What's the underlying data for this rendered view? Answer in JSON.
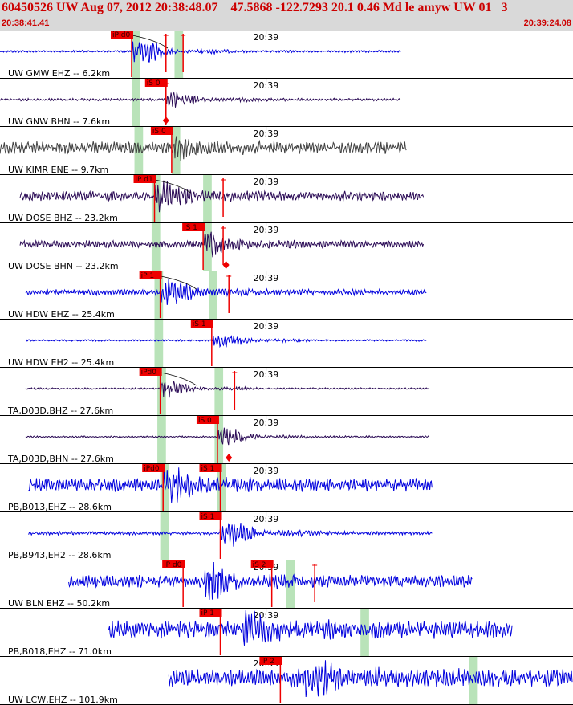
{
  "header": {
    "title": "60450526 UW Aug 07, 2012 20:38:48.07    47.5868 -122.7293 20.1 0.46 Md le amyw UW 01   3",
    "start_time": "20:38:41.41",
    "end_time": "20:39:24.08"
  },
  "colors": {
    "blue": "#0000dd",
    "dark_purple": "#2a0a55",
    "gray": "#404040",
    "pick": "#ee0000",
    "shade": "#a8dca8",
    "header_bg": "#d9d9d9"
  },
  "chart_data": {
    "type": "seismogram",
    "time_range": [
      "20:38:41.41",
      "20:39:24.08"
    ],
    "time_tick_label": "20:39",
    "traces": [
      {
        "label": "UW GMW EHZ -- 6.2km",
        "color": "blue",
        "t_start": 0.0,
        "t_end": 0.7,
        "onset": 0.23,
        "amp": 0.9,
        "noise": 0.05,
        "picks": [
          {
            "label": "iP d0",
            "t": 0.23
          }
        ],
        "markers": [
          0.29,
          0.32
        ],
        "shade": [
          0.23,
          0.245,
          0.305,
          0.32
        ],
        "moveout": true
      },
      {
        "label": "UW GNW BHN -- 7.6km",
        "color": "dark_purple",
        "t_start": 0.0,
        "t_end": 0.7,
        "onset": 0.29,
        "amp": 0.55,
        "noise": 0.06,
        "picks": [
          {
            "label": "iS 0",
            "t": 0.29
          }
        ],
        "markers": [
          0.29
        ],
        "diamond": 0.29,
        "shade": [
          0.23,
          0.245
        ]
      },
      {
        "label": "UW KIMR ENE -- 9.7km",
        "color": "gray",
        "t_start": 0.0,
        "t_end": 0.71,
        "onset": 0.3,
        "amp": 0.45,
        "noise": 0.28,
        "picks": [
          {
            "label": "iS 0",
            "t": 0.3
          }
        ],
        "markers": [],
        "shade": [
          0.235,
          0.25,
          0.3,
          0.315
        ]
      },
      {
        "label": "UW DOSE BHZ -- 23.2km",
        "color": "dark_purple",
        "t_start": 0.035,
        "t_end": 0.74,
        "onset": 0.27,
        "amp": 0.8,
        "noise": 0.22,
        "picks": [
          {
            "label": "iP d1",
            "t": 0.27
          }
        ],
        "markers": [
          0.39
        ],
        "shade": [
          0.265,
          0.28,
          0.355,
          0.37
        ],
        "moveout": true
      },
      {
        "label": "UW DOSE BHN -- 23.2km",
        "color": "dark_purple",
        "t_start": 0.035,
        "t_end": 0.74,
        "onset": 0.355,
        "amp": 0.75,
        "noise": 0.16,
        "picks": [
          {
            "label": "iS 1",
            "t": 0.355
          }
        ],
        "markers": [
          0.39
        ],
        "diamond": 0.395,
        "shade": [
          0.265,
          0.28,
          0.355,
          0.37
        ]
      },
      {
        "label": "UW HDW EHZ -- 25.4km",
        "color": "blue",
        "t_start": 0.045,
        "t_end": 0.745,
        "onset": 0.28,
        "amp": 0.75,
        "noise": 0.13,
        "picks": [
          {
            "label": "iP 1",
            "t": 0.28
          }
        ],
        "markers": [
          0.4
        ],
        "shade": [
          0.27,
          0.285,
          0.365,
          0.38
        ],
        "moveout": true
      },
      {
        "label": "UW HDW EH2 -- 25.4km",
        "color": "blue",
        "t_start": 0.045,
        "t_end": 0.745,
        "onset": 0.37,
        "amp": 0.55,
        "noise": 0.04,
        "picks": [
          {
            "label": "iS 1",
            "t": 0.37
          }
        ],
        "markers": [],
        "shade": [
          0.27,
          0.285
        ]
      },
      {
        "label": "TA,D03D,BHZ -- 27.6km",
        "color": "dark_purple",
        "t_start": 0.045,
        "t_end": 0.75,
        "onset": 0.28,
        "amp": 0.55,
        "noise": 0.04,
        "picks": [
          {
            "label": "iPd0",
            "t": 0.28
          }
        ],
        "markers": [
          0.41
        ],
        "shade": [
          0.275,
          0.29,
          0.375,
          0.39
        ],
        "moveout": true
      },
      {
        "label": "TA,D03D,BHN -- 27.6km",
        "color": "dark_purple",
        "t_start": 0.045,
        "t_end": 0.75,
        "onset": 0.38,
        "amp": 0.6,
        "noise": 0.04,
        "picks": [
          {
            "label": "iS 0",
            "t": 0.38
          }
        ],
        "markers": [],
        "diamond": 0.4,
        "shade": [
          0.275,
          0.29,
          0.375,
          0.39
        ]
      },
      {
        "label": "PB,B013,EHZ -- 28.6km",
        "color": "blue",
        "t_start": 0.05,
        "t_end": 0.755,
        "onset": 0.285,
        "amp": 0.85,
        "noise": 0.3,
        "picks": [
          {
            "label": "iPd0",
            "t": 0.285
          },
          {
            "label": "iS 1",
            "t": 0.385
          }
        ],
        "markers": [],
        "shade": [
          0.28,
          0.295,
          0.38,
          0.395
        ]
      },
      {
        "label": "PB,B943,EH2 -- 28.6km",
        "color": "blue",
        "t_start": 0.05,
        "t_end": 0.755,
        "onset": 0.385,
        "amp": 0.85,
        "noise": 0.08,
        "picks": [
          {
            "label": "iS 1",
            "t": 0.385
          }
        ],
        "markers": [],
        "shade": [
          0.28,
          0.295
        ]
      },
      {
        "label": "UW BLN EHZ -- 50.2km",
        "color": "blue",
        "t_start": 0.12,
        "t_end": 0.825,
        "onset": 0.355,
        "amp": 0.9,
        "noise": 0.28,
        "picks": [
          {
            "label": "iP d0",
            "t": 0.32
          },
          {
            "label": "iS 2",
            "t": 0.475
          }
        ],
        "markers": [
          0.55
        ],
        "shade": [
          0.5,
          0.515
        ]
      },
      {
        "label": "PB,B018,EHZ -- 71.0km",
        "color": "blue",
        "t_start": 0.19,
        "t_end": 0.895,
        "onset": 0.42,
        "amp": 0.75,
        "noise": 0.42,
        "picks": [
          {
            "label": "iP 1",
            "t": 0.385
          }
        ],
        "markers": [],
        "shade": [
          0.63,
          0.645
        ]
      },
      {
        "label": "UW LCW,EHZ -- 101.9km",
        "color": "blue",
        "t_start": 0.295,
        "t_end": 1.0,
        "onset": 0.53,
        "amp": 0.75,
        "noise": 0.42,
        "picks": [
          {
            "label": "iP 2",
            "t": 0.49
          }
        ],
        "markers": [],
        "shade": [
          0.82,
          0.835
        ]
      }
    ]
  }
}
